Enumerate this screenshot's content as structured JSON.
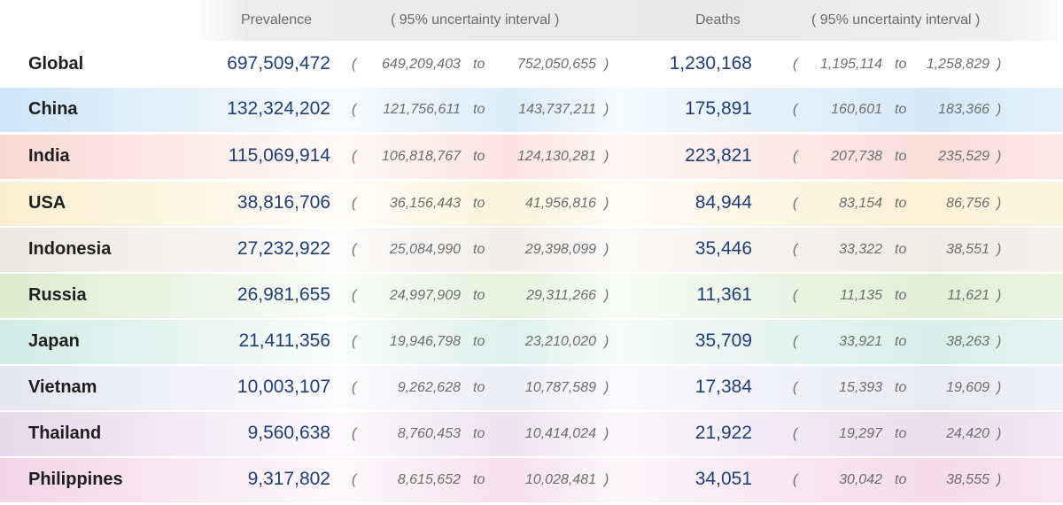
{
  "chart_data": {
    "type": "table",
    "columns": {
      "prevalence": "Prevalence",
      "prevalence_ui": "( 95% uncertainty interval )",
      "deaths": "Deaths",
      "deaths_ui": "( 95% uncertainty interval )"
    },
    "separator": "to",
    "open_paren": "(",
    "close_paren": ")",
    "rows": [
      {
        "country": "Global",
        "prevalence": "697,509,472",
        "prev_low": "649,209,403",
        "prev_high": "752,050,655",
        "deaths": "1,230,168",
        "deaths_low": "1,195,114",
        "deaths_high": "1,258,829",
        "color": "#ffffff"
      },
      {
        "country": "China",
        "prevalence": "132,324,202",
        "prev_low": "121,756,611",
        "prev_high": "143,737,211",
        "deaths": "175,891",
        "deaths_low": "160,601",
        "deaths_high": "183,366",
        "color": "#cfe6f7"
      },
      {
        "country": "India",
        "prevalence": "115,069,914",
        "prev_low": "106,818,767",
        "prev_high": "124,130,281",
        "deaths": "223,821",
        "deaths_low": "207,738",
        "deaths_high": "235,529",
        "color": "#f9d9d3"
      },
      {
        "country": "USA",
        "prevalence": "38,816,706",
        "prev_low": "36,156,443",
        "prev_high": "41,956,816",
        "deaths": "84,944",
        "deaths_low": "83,154",
        "deaths_high": "86,756",
        "color": "#fbefcf"
      },
      {
        "country": "Indonesia",
        "prevalence": "27,232,922",
        "prev_low": "25,084,990",
        "prev_high": "29,398,099",
        "deaths": "35,446",
        "deaths_low": "33,322",
        "deaths_high": "38,551",
        "color": "#ece7e2"
      },
      {
        "country": "Russia",
        "prevalence": "26,981,655",
        "prev_low": "24,997,909",
        "prev_high": "29,311,266",
        "deaths": "11,361",
        "deaths_low": "11,135",
        "deaths_high": "11,621",
        "color": "#dcedd0"
      },
      {
        "country": "Japan",
        "prevalence": "21,411,356",
        "prev_low": "19,946,798",
        "prev_high": "23,210,020",
        "deaths": "35,709",
        "deaths_low": "33,921",
        "deaths_high": "38,263",
        "color": "#d3ece6"
      },
      {
        "country": "Vietnam",
        "prevalence": "10,003,107",
        "prev_low": "9,262,628",
        "prev_high": "10,787,589",
        "deaths": "17,384",
        "deaths_low": "15,393",
        "deaths_high": "19,609",
        "color": "#e6e6f3"
      },
      {
        "country": "Thailand",
        "prevalence": "9,560,638",
        "prev_low": "8,760,453",
        "prev_high": "10,414,024",
        "deaths": "21,922",
        "deaths_low": "19,297",
        "deaths_high": "24,420",
        "color": "#e7d9ea"
      },
      {
        "country": "Philippines",
        "prevalence": "9,317,802",
        "prev_low": "8,615,652",
        "prev_high": "10,028,481",
        "deaths": "34,051",
        "deaths_low": "30,042",
        "deaths_high": "38,555",
        "color": "#f3d6e6"
      }
    ]
  }
}
